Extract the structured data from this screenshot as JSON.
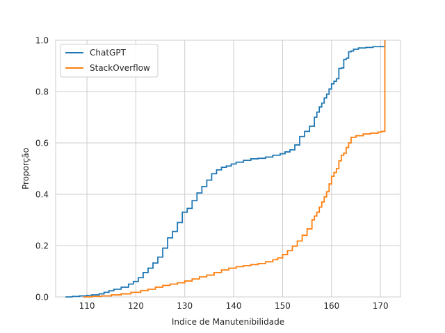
{
  "chart_data": {
    "type": "line",
    "subtype": "ecdf",
    "title": "",
    "xlabel": "Indice de Manutenibilidade",
    "ylabel": "Proporção",
    "xlim": [
      103.6,
      174.1
    ],
    "ylim": [
      0,
      1
    ],
    "x_ticks": [
      110,
      120,
      130,
      140,
      150,
      160,
      170
    ],
    "y_ticks": [
      0.0,
      0.2,
      0.4,
      0.6,
      0.8,
      1.0
    ],
    "x_tick_labels": [
      "110",
      "120",
      "130",
      "140",
      "150",
      "160",
      "170"
    ],
    "y_tick_labels": [
      "0.0",
      "0.2",
      "0.4",
      "0.6",
      "0.8",
      "1.0"
    ],
    "grid": true,
    "legend_position": "top-left",
    "series": [
      {
        "name": "ChatGPT",
        "color": "#1f77b4",
        "x": [
          105.6,
          107,
          108.5,
          110,
          111,
          112.5,
          113.5,
          114.5,
          115.5,
          117,
          118.5,
          119.5,
          120.5,
          121.5,
          122.5,
          123.5,
          124.5,
          125.5,
          126.5,
          127.5,
          128.5,
          129.5,
          130.5,
          131.5,
          132.5,
          133.5,
          134.5,
          135.5,
          136.5,
          137.5,
          138.5,
          139.5,
          140.5,
          142,
          143.5,
          145,
          146.5,
          148,
          149.5,
          150.5,
          151.5,
          152.5,
          153.5,
          154.5,
          155.5,
          156.5,
          157,
          157.5,
          158,
          158.5,
          159,
          159.5,
          160,
          160.5,
          161,
          161.5,
          162,
          162.5,
          163,
          163.5,
          164,
          164.5,
          165.5,
          167,
          168.5,
          170,
          170.6,
          170.9
        ],
        "y": [
          0.0,
          0.002,
          0.004,
          0.006,
          0.008,
          0.012,
          0.018,
          0.024,
          0.03,
          0.038,
          0.05,
          0.06,
          0.075,
          0.095,
          0.112,
          0.132,
          0.155,
          0.19,
          0.23,
          0.255,
          0.29,
          0.33,
          0.345,
          0.375,
          0.405,
          0.43,
          0.455,
          0.48,
          0.495,
          0.505,
          0.51,
          0.518,
          0.525,
          0.532,
          0.538,
          0.54,
          0.545,
          0.552,
          0.558,
          0.565,
          0.573,
          0.592,
          0.625,
          0.645,
          0.665,
          0.7,
          0.72,
          0.74,
          0.755,
          0.775,
          0.79,
          0.81,
          0.83,
          0.84,
          0.85,
          0.89,
          0.892,
          0.925,
          0.93,
          0.955,
          0.958,
          0.965,
          0.97,
          0.972,
          0.975,
          0.975,
          0.975,
          1.0
        ]
      },
      {
        "name": "StackOverflow",
        "color": "#ff7f0e",
        "x": [
          109.3,
          111,
          113,
          115,
          117,
          119,
          121,
          122.5,
          124,
          125.5,
          127,
          128.5,
          130,
          131.5,
          133,
          134.5,
          136,
          137.5,
          139,
          140.5,
          142,
          143.5,
          145,
          146.5,
          148,
          149,
          150,
          151,
          152,
          153,
          154,
          155,
          156,
          156.5,
          157,
          157.5,
          158,
          158.5,
          159,
          159.5,
          160,
          160.5,
          161,
          161.5,
          162,
          162.5,
          163,
          163.5,
          164,
          165,
          166.5,
          168,
          169.5,
          170.2,
          170.9
        ],
        "y": [
          0.0,
          0.002,
          0.004,
          0.008,
          0.012,
          0.018,
          0.025,
          0.03,
          0.038,
          0.045,
          0.05,
          0.055,
          0.062,
          0.07,
          0.078,
          0.085,
          0.095,
          0.105,
          0.112,
          0.118,
          0.122,
          0.126,
          0.13,
          0.137,
          0.145,
          0.152,
          0.165,
          0.18,
          0.198,
          0.218,
          0.24,
          0.265,
          0.3,
          0.315,
          0.33,
          0.35,
          0.37,
          0.39,
          0.41,
          0.44,
          0.47,
          0.485,
          0.5,
          0.53,
          0.552,
          0.56,
          0.582,
          0.6,
          0.622,
          0.628,
          0.635,
          0.638,
          0.642,
          0.645,
          1.0
        ]
      }
    ]
  }
}
